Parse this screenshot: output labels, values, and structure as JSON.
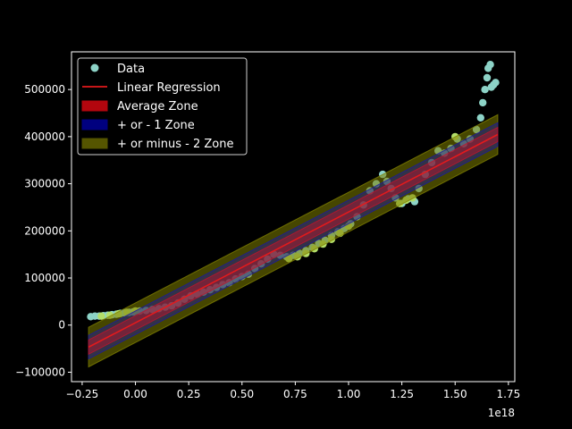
{
  "chart_data": {
    "type": "scatter",
    "x_axis": {
      "range": [
        -3e+17,
        1.78e+18
      ],
      "ticks": [
        -0.25,
        0.0,
        0.25,
        0.5,
        0.75,
        1.0,
        1.25,
        1.5,
        1.75
      ],
      "tick_labels": [
        "−0.25",
        "0.00",
        "0.25",
        "0.50",
        "0.75",
        "1.00",
        "1.25",
        "1.50",
        "1.75"
      ],
      "offset_label": "1e18"
    },
    "y_axis": {
      "range": [
        -120000,
        580000
      ],
      "ticks": [
        -100000,
        0,
        100000,
        200000,
        300000,
        400000,
        500000
      ],
      "tick_labels": [
        "−100000",
        "0",
        "100000",
        "200000",
        "300000",
        "400000",
        "500000"
      ]
    },
    "regression": {
      "slope": 2.35e-13,
      "intercept": 5000,
      "x_start": -2.2e+17,
      "x_end": 1.7e+18
    },
    "zones": {
      "average_half_width": 15000,
      "one_sigma_half_width": 25000,
      "two_sigma_half_width": 42000
    },
    "series": [
      {
        "name": "Data",
        "color": "#8dd3c7",
        "points": [
          [
            -2.1e+17,
            18000
          ],
          [
            -1.9e+17,
            19000
          ],
          [
            -1.7e+17,
            19000
          ],
          [
            -1.5e+17,
            20000
          ],
          [
            -1.3e+17,
            21000
          ],
          [
            -1.1e+17,
            22000
          ],
          [
            -9e+16,
            23000
          ],
          [
            -7e+16,
            25000
          ],
          [
            -5e+16,
            26000
          ],
          [
            -3e+16,
            27000
          ],
          [
            -1e+16,
            28000
          ],
          [
            2e+16,
            30000
          ],
          [
            5e+16,
            31000
          ],
          [
            8e+16,
            33000
          ],
          [
            1.1e+17,
            35000
          ],
          [
            1.4e+17,
            38000
          ],
          [
            1.7e+17,
            41000
          ],
          [
            2e+17,
            47000
          ],
          [
            2.3e+17,
            55000
          ],
          [
            2.6e+17,
            62000
          ],
          [
            2.9e+17,
            66000
          ],
          [
            3.2e+17,
            70000
          ],
          [
            3.5e+17,
            75000
          ],
          [
            3.8e+17,
            80000
          ],
          [
            4.1e+17,
            86000
          ],
          [
            4.4e+17,
            90000
          ],
          [
            4.7e+17,
            98000
          ],
          [
            5e+17,
            103000
          ],
          [
            5.3e+17,
            108000
          ],
          [
            5.6e+17,
            120000
          ],
          [
            5.9e+17,
            130000
          ],
          [
            6.2e+17,
            140000
          ],
          [
            6.5e+17,
            150000
          ],
          [
            6.8e+17,
            148000
          ],
          [
            7.1e+17,
            145000
          ],
          [
            7.4e+17,
            148000
          ],
          [
            7.7e+17,
            152000
          ],
          [
            8e+17,
            158000
          ],
          [
            8.3e+17,
            165000
          ],
          [
            8.6e+17,
            173000
          ],
          [
            8.9e+17,
            180000
          ],
          [
            9.2e+17,
            190000
          ],
          [
            9.5e+17,
            198000
          ],
          [
            9.8e+17,
            205000
          ],
          [
            1.01e+18,
            215000
          ],
          [
            1.04e+18,
            230000
          ],
          [
            1.07e+18,
            255000
          ],
          [
            1.1e+18,
            285000
          ],
          [
            1.13e+18,
            300000
          ],
          [
            1.16e+18,
            320000
          ],
          [
            1.18e+18,
            305000
          ],
          [
            1.2e+18,
            290000
          ],
          [
            1.22e+18,
            270000
          ],
          [
            1.25e+18,
            258000
          ],
          [
            1.28e+18,
            268000
          ],
          [
            1.31e+18,
            262000
          ],
          [
            1.33e+18,
            290000
          ],
          [
            1.36e+18,
            320000
          ],
          [
            1.39e+18,
            345000
          ],
          [
            1.42e+18,
            370000
          ],
          [
            1.45e+18,
            365000
          ],
          [
            1.48e+18,
            375000
          ],
          [
            1.51e+18,
            395000
          ],
          [
            1.54e+18,
            385000
          ],
          [
            1.57e+18,
            395000
          ],
          [
            1.6e+18,
            415000
          ],
          [
            1.62e+18,
            440000
          ],
          [
            1.63e+18,
            472000
          ],
          [
            1.64e+18,
            500000
          ],
          [
            1.65e+18,
            525000
          ],
          [
            1.655e+18,
            545000
          ],
          [
            1.665e+18,
            553000
          ],
          [
            1.67e+18,
            505000
          ],
          [
            1.68e+18,
            510000
          ],
          [
            1.69e+18,
            515000
          ]
        ]
      },
      {
        "name": "",
        "color": "#b3de69",
        "points": [
          [
            -1.6e+17,
            19000
          ],
          [
            -1.2e+17,
            21000
          ],
          [
            -8e+16,
            24000
          ],
          [
            -4e+16,
            27000
          ],
          [
            0.0,
            30000
          ],
          [
            7.2e+17,
            141000
          ],
          [
            7.6e+17,
            145000
          ],
          [
            8e+17,
            152000
          ],
          [
            8.4e+17,
            162000
          ],
          [
            8.8e+17,
            172000
          ],
          [
            9.2e+17,
            182000
          ],
          [
            9.6e+17,
            195000
          ],
          [
            1e+18,
            210000
          ],
          [
            1.24e+18,
            258000
          ],
          [
            1.27e+18,
            265000
          ],
          [
            1.3e+18,
            270000
          ],
          [
            1.5e+18,
            400000
          ]
        ]
      }
    ],
    "legend": {
      "position": "upper-left",
      "entries": [
        {
          "label": "Data",
          "kind": "marker",
          "color": "#8dd3c7"
        },
        {
          "label": "Linear Regression",
          "kind": "line",
          "color": "#e31a1c"
        },
        {
          "label": "Average Zone",
          "kind": "patch",
          "color": "#b3060e"
        },
        {
          "label": "+ or - 1 Zone",
          "kind": "patch",
          "color": "#00007f"
        },
        {
          "label": "+ or minus - 2 Zone",
          "kind": "patch",
          "color": "#555500"
        }
      ]
    }
  }
}
